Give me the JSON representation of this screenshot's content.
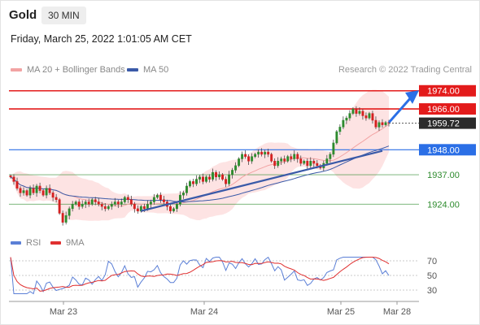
{
  "header": {
    "title": "Gold",
    "interval": "30 MIN",
    "datetime": "Friday, March 25, 2022 1:01:05 AM CET"
  },
  "legend": {
    "ma20_label": "MA 20 + Bollinger Bands",
    "ma50_label": "MA 50",
    "credit": "Research © 2022 Trading Central"
  },
  "rsi_legend": {
    "rsi_label": "RSI",
    "ma_label": "9MA"
  },
  "colors": {
    "resistance": "#e31b1b",
    "pivot": "#2b6fe6",
    "support": "#2e8b2e",
    "ma20": "#f2a3a3",
    "ma50": "#3a5aa8",
    "bullish_candle": "#2e8b2e",
    "bearish_candle": "#d42020",
    "rsi": "#5b7fd6",
    "rsi_ma": "#e03030"
  },
  "chart_data": {
    "type": "candlestick",
    "instrument": "Gold",
    "timeframe": "30 MIN",
    "x_tick_labels": [
      "Mar 23",
      "Mar 24",
      "Mar 25",
      "Mar 28"
    ],
    "ylim": [
      1913,
      1980
    ],
    "levels": [
      {
        "value": 1974.0,
        "label": "1974.00",
        "kind": "resistance"
      },
      {
        "value": 1966.0,
        "label": "1966.00",
        "kind": "resistance"
      },
      {
        "value": 1948.0,
        "label": "1948.00",
        "kind": "pivot"
      },
      {
        "value": 1937.0,
        "label": "1937.00",
        "kind": "support"
      },
      {
        "value": 1924.0,
        "label": "1924.00",
        "kind": "support"
      }
    ],
    "last_price": {
      "value": 1959.72,
      "label": "1959.72"
    },
    "closes": [
      1936,
      1934,
      1931,
      1929,
      1930,
      1928,
      1931,
      1929,
      1932,
      1930,
      1928,
      1931,
      1929,
      1927,
      1926,
      1920,
      1916,
      1919,
      1922,
      1924,
      1925,
      1923,
      1924,
      1925,
      1924,
      1926,
      1925,
      1924,
      1923,
      1922,
      1923,
      1924,
      1925,
      1924,
      1925,
      1927,
      1926,
      1924,
      1922,
      1921,
      1923,
      1922,
      1924,
      1925,
      1927,
      1928,
      1926,
      1925,
      1923,
      1921,
      1922,
      1924,
      1928,
      1929,
      1932,
      1934,
      1933,
      1935,
      1936,
      1934,
      1936,
      1935,
      1938,
      1936,
      1937,
      1935,
      1933,
      1937,
      1939,
      1941,
      1944,
      1946,
      1945,
      1943,
      1945,
      1946,
      1947,
      1946,
      1947,
      1946,
      1943,
      1941,
      1943,
      1944,
      1943,
      1945,
      1944,
      1946,
      1944,
      1942,
      1943,
      1941,
      1943,
      1942,
      1941,
      1940,
      1942,
      1944,
      1946,
      1951,
      1956,
      1958,
      1961,
      1962,
      1964,
      1966,
      1964,
      1965,
      1963,
      1962,
      1964,
      1961,
      1958,
      1960,
      1959,
      1960,
      1959.72
    ],
    "rsi": {
      "levels": [
        30,
        50,
        70
      ],
      "ylim": [
        20,
        80
      ]
    }
  }
}
